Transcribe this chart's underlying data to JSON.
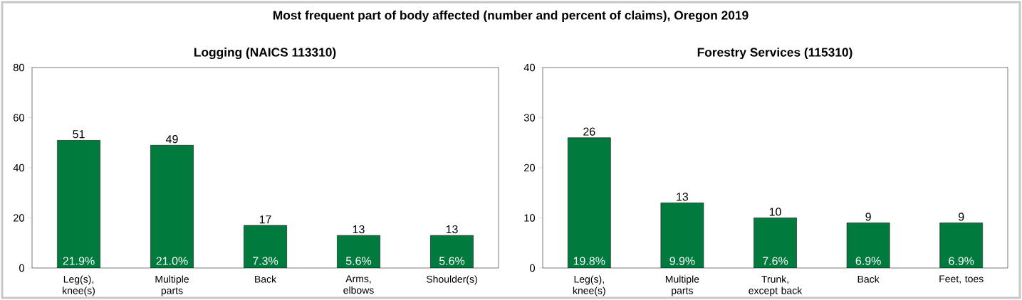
{
  "chart_data": [
    {
      "type": "bar",
      "title": "Most frequent part of body affected (number and percent of claims), Oregon 2019",
      "subtitle": "Logging (NAICS 113310)",
      "categories": [
        "Leg(s), knee(s)",
        "Multiple parts",
        "Back",
        "Arms, elbows",
        "Shoulder(s)"
      ],
      "values": [
        51,
        49,
        17,
        13,
        13
      ],
      "color": "#007a3d",
      "data_labels": true,
      "ylim": [
        0,
        80
      ],
      "yticks": [
        0,
        20,
        40,
        60,
        80
      ],
      "annotations": [
        "21.9%",
        "21.0%",
        "7.3%",
        "5.6%",
        "5.6%"
      ]
    },
    {
      "type": "bar",
      "subtitle": "Forestry Services (115310)",
      "categories": [
        "Leg(s), knee(s)",
        "Multiple parts",
        "Trunk, except back",
        "Back",
        "Feet, toes"
      ],
      "values": [
        26,
        13,
        10,
        9,
        9
      ],
      "color": "#007a3d",
      "data_labels": true,
      "ylim": [
        0,
        40
      ],
      "yticks": [
        0,
        10,
        20,
        30,
        40
      ],
      "annotations": [
        "19.8%",
        "9.9%",
        "7.6%",
        "6.9%",
        "6.9%"
      ]
    }
  ]
}
